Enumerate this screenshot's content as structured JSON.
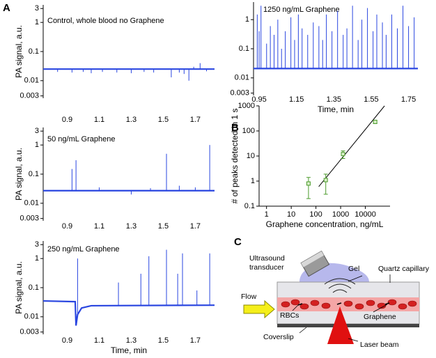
{
  "panel_labels": [
    "A",
    "B",
    "C"
  ],
  "chart_data": [
    {
      "type": "spikes",
      "annotation": "Control, whole blood no Graphene",
      "ylabel": "PA signal, a.u.",
      "log_y": true,
      "color": "#2a46e0",
      "xlim": [
        0.75,
        1.82
      ],
      "ylim": [
        0.0025,
        4
      ],
      "xticks": [
        0.9,
        1.1,
        1.3,
        1.5,
        1.7
      ],
      "yticks": [
        0.003,
        0.01,
        0.1,
        1,
        3
      ],
      "baseline": {
        "x": [
          0.75,
          1.82
        ],
        "values": [
          0.025,
          0.025
        ]
      },
      "peaks": {
        "x": [
          0.84,
          0.93,
          1.0,
          1.05,
          1.12,
          1.21,
          1.3,
          1.38,
          1.44,
          1.55,
          1.6,
          1.63,
          1.66,
          1.69,
          1.73,
          1.77
        ],
        "values": [
          0.02,
          0.019,
          0.02,
          0.018,
          0.02,
          0.019,
          0.018,
          0.02,
          0.019,
          0.013,
          0.019,
          0.017,
          0.01,
          0.03,
          0.04,
          0.021
        ]
      }
    },
    {
      "type": "spikes",
      "annotation": "50 ng/mL Graphene",
      "ylabel": "PA signal, a.u.",
      "log_y": true,
      "color": "#2a46e0",
      "xlim": [
        0.75,
        1.82
      ],
      "ylim": [
        0.0025,
        4
      ],
      "xticks": [
        0.9,
        1.1,
        1.3,
        1.5,
        1.7
      ],
      "yticks": [
        0.003,
        0.01,
        0.1,
        1,
        3
      ],
      "baseline": {
        "x": [
          0.75,
          1.82
        ],
        "values": [
          0.027,
          0.027
        ]
      },
      "peaks": {
        "x": [
          0.93,
          0.955,
          1.1,
          1.3,
          1.42,
          1.52,
          1.6,
          1.7,
          1.79
        ],
        "values": [
          0.15,
          0.3,
          0.035,
          0.02,
          0.033,
          0.5,
          0.04,
          0.035,
          1
        ]
      }
    },
    {
      "type": "spikes",
      "annotation": "250 ng/mL Graphene",
      "ylabel": "PA signal, a.u.",
      "xlabel": "Time, min",
      "log_y": true,
      "color": "#2a46e0",
      "xlim": [
        0.75,
        1.82
      ],
      "ylim": [
        0.0025,
        4
      ],
      "xticks": [
        0.9,
        1.1,
        1.3,
        1.5,
        1.7
      ],
      "yticks": [
        0.003,
        0.01,
        0.1,
        1,
        3
      ],
      "baseline": {
        "x": [
          0.75,
          0.95,
          0.955,
          0.965,
          0.99,
          1.05,
          1.82
        ],
        "values": [
          0.035,
          0.033,
          0.005,
          0.012,
          0.02,
          0.024,
          0.025
        ]
      },
      "peaks": {
        "x": [
          0.965,
          1.22,
          1.36,
          1.41,
          1.52,
          1.59,
          1.62,
          1.71,
          1.79
        ],
        "values": [
          1,
          0.15,
          0.3,
          1.2,
          2,
          0.3,
          1.5,
          0.08,
          1.5
        ]
      }
    },
    {
      "type": "spikes",
      "annotation": "1250 ng/mL Graphene",
      "xlabel": "Time, min",
      "log_y": true,
      "color": "#2a46e0",
      "xlim": [
        0.92,
        1.8
      ],
      "ylim": [
        0.0025,
        4
      ],
      "xticks": [
        0.95,
        1.15,
        1.35,
        1.55,
        1.75
      ],
      "yticks": [
        0.003,
        0.01,
        0.1,
        1
      ],
      "baseline": {
        "x": [
          0.92,
          1.8
        ],
        "values": [
          0.021,
          0.021
        ]
      },
      "peaks": {
        "x": [
          0.94,
          0.95,
          0.96,
          0.99,
          1.01,
          1.03,
          1.05,
          1.07,
          1.09,
          1.12,
          1.14,
          1.16,
          1.18,
          1.21,
          1.24,
          1.27,
          1.29,
          1.31,
          1.34,
          1.37,
          1.4,
          1.42,
          1.45,
          1.48,
          1.5,
          1.53,
          1.56,
          1.58,
          1.61,
          1.63,
          1.66,
          1.69,
          1.72,
          1.75,
          1.78
        ],
        "values": [
          1.5,
          0.4,
          3,
          0.15,
          0.6,
          0.3,
          1,
          0.1,
          0.4,
          1.2,
          0.2,
          1.5,
          0.5,
          0.3,
          0.8,
          0.6,
          0.2,
          1.5,
          0.4,
          2,
          0.3,
          0.5,
          3,
          0.2,
          1,
          2.5,
          0.4,
          1.5,
          0.8,
          0.3,
          1.5,
          0.5,
          3,
          0.6,
          1.2
        ]
      }
    },
    {
      "type": "scatter",
      "ylabel": "# of peaks detected in 1 s",
      "xlabel": "Graphene concentration, ng/mL",
      "log_x": true,
      "log_y": true,
      "color": "#4a9a2a",
      "line_color": "#000000",
      "xlim": [
        0.5,
        100000
      ],
      "ylim": [
        0.1,
        1000
      ],
      "xticks": [
        1,
        10,
        100,
        1000,
        10000
      ],
      "yticks": [
        0.1,
        1,
        10,
        100,
        1000
      ],
      "x": [
        50,
        250,
        1250,
        25000
      ],
      "values": [
        0.8,
        1.1,
        12,
        230
      ],
      "errors": [
        0.6,
        0.8,
        4,
        30
      ],
      "trendline": {
        "x": [
          130,
          60000
        ],
        "values": [
          0.6,
          1000
        ]
      }
    }
  ],
  "diagram": {
    "ultrasound": "Ultrasound",
    "transducer": "transducer",
    "gel": "Gel",
    "capillary": "Quartz capillary",
    "flow": "Flow",
    "rbcs": "RBCs",
    "graphene": "Graphene",
    "coverslip": "Coverslip",
    "laser": "Laser beam"
  }
}
